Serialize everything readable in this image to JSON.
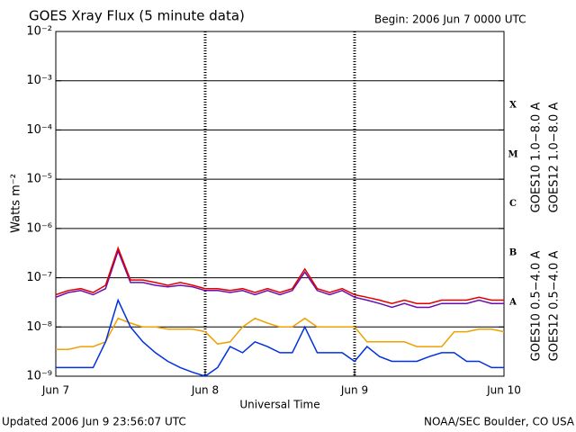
{
  "chart_data": {
    "type": "line",
    "title": "GOES Xray Flux (5 minute data)",
    "subtitle": "Begin:  2006 Jun 7 0000 UTC",
    "y_label": "Watts m⁻²",
    "x_label": "Universal Time",
    "footer_left": "Updated 2006 Jun  9 23:56:07 UTC",
    "footer_right": "NOAA/SEC Boulder, CO USA",
    "log_scale": true,
    "grid": true,
    "flare_classes": [
      "A",
      "B",
      "C",
      "M",
      "X"
    ],
    "xlim": [
      0,
      72
    ],
    "xticks": [
      {
        "value": 0,
        "label": "Jun 7"
      },
      {
        "value": 24,
        "label": "Jun 8"
      },
      {
        "value": 48,
        "label": "Jun 9"
      },
      {
        "value": 72,
        "label": "Jun 10"
      }
    ],
    "ylim": [
      1e-09,
      0.01
    ],
    "yticks": [
      {
        "value": 1e-09,
        "label": "10⁻⁹"
      },
      {
        "value": 1e-08,
        "label": "10⁻⁸"
      },
      {
        "value": 1e-07,
        "label": "10⁻⁷"
      },
      {
        "value": 1e-06,
        "label": "10⁻⁶"
      },
      {
        "value": 1e-05,
        "label": "10⁻⁵"
      },
      {
        "value": 0.0001,
        "label": "10⁻⁴"
      },
      {
        "value": 0.001,
        "label": "10⁻³"
      },
      {
        "value": 0.01,
        "label": "10⁻²"
      }
    ],
    "x": [
      0,
      2,
      4,
      6,
      8,
      10,
      12,
      14,
      16,
      18,
      20,
      22,
      24,
      26,
      28,
      30,
      32,
      34,
      36,
      38,
      40,
      42,
      44,
      46,
      48,
      50,
      52,
      54,
      56,
      58,
      60,
      62,
      64,
      66,
      68,
      70,
      72
    ],
    "series": [
      {
        "name": "GOES10 1.0−8.0 A",
        "color": "#6a0dad",
        "values": [
          4e-08,
          5e-08,
          5.5e-08,
          4.5e-08,
          6e-08,
          3.5e-07,
          8e-08,
          8e-08,
          7e-08,
          6.5e-08,
          7e-08,
          6.5e-08,
          5.5e-08,
          5.5e-08,
          5e-08,
          5.5e-08,
          4.5e-08,
          5.5e-08,
          4.5e-08,
          5.5e-08,
          1.3e-07,
          5.5e-08,
          4.5e-08,
          5.5e-08,
          4e-08,
          3.5e-08,
          3e-08,
          2.5e-08,
          3e-08,
          2.5e-08,
          2.5e-08,
          3e-08,
          3e-08,
          3e-08,
          3.5e-08,
          3e-08,
          3e-08
        ]
      },
      {
        "name": "GOES12 1.0−8.0 A",
        "color": "#e00000",
        "values": [
          4.5e-08,
          5.5e-08,
          6e-08,
          5e-08,
          7e-08,
          4e-07,
          9e-08,
          9e-08,
          8e-08,
          7e-08,
          8e-08,
          7e-08,
          6e-08,
          6e-08,
          5.5e-08,
          6e-08,
          5e-08,
          6e-08,
          5e-08,
          6e-08,
          1.5e-07,
          6e-08,
          5e-08,
          6e-08,
          4.5e-08,
          4e-08,
          3.5e-08,
          3e-08,
          3.5e-08,
          3e-08,
          3e-08,
          3.5e-08,
          3.5e-08,
          3.5e-08,
          4e-08,
          3.5e-08,
          3.5e-08
        ]
      },
      {
        "name": "GOES10 0.5−4.0 A",
        "color": "#f0a000",
        "values": [
          3.5e-09,
          3.5e-09,
          4e-09,
          4e-09,
          5e-09,
          1.5e-08,
          1.2e-08,
          1e-08,
          1e-08,
          9e-09,
          9e-09,
          9e-09,
          8e-09,
          4.5e-09,
          5e-09,
          1e-08,
          1.5e-08,
          1.2e-08,
          1e-08,
          1e-08,
          1.5e-08,
          1e-08,
          1e-08,
          1e-08,
          1e-08,
          5e-09,
          5e-09,
          5e-09,
          5e-09,
          4e-09,
          4e-09,
          4e-09,
          8e-09,
          8e-09,
          9e-09,
          9e-09,
          8e-09
        ]
      },
      {
        "name": "GOES12 0.5−4.0 A",
        "color": "#0030e0",
        "values": [
          1.5e-09,
          1.5e-09,
          1.5e-09,
          1.5e-09,
          5e-09,
          3.5e-08,
          1e-08,
          5e-09,
          3e-09,
          2e-09,
          1.5e-09,
          1.2e-09,
          1e-09,
          1.5e-09,
          4e-09,
          3e-09,
          5e-09,
          4e-09,
          3e-09,
          3e-09,
          1e-08,
          3e-09,
          3e-09,
          3e-09,
          2e-09,
          4e-09,
          2.5e-09,
          2e-09,
          2e-09,
          2e-09,
          2.5e-09,
          3e-09,
          3e-09,
          2e-09,
          2e-09,
          1.5e-09,
          1.5e-09
        ]
      }
    ]
  }
}
